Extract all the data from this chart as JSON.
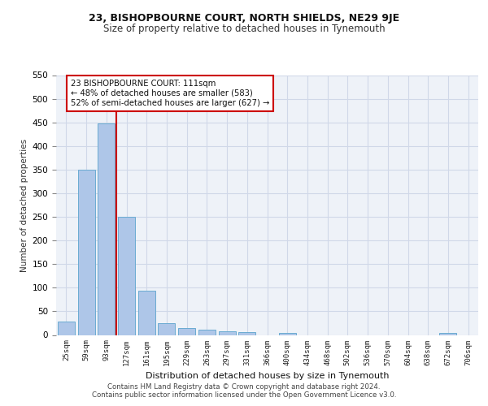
{
  "title1": "23, BISHOPBOURNE COURT, NORTH SHIELDS, NE29 9JE",
  "title2": "Size of property relative to detached houses in Tynemouth",
  "xlabel": "Distribution of detached houses by size in Tynemouth",
  "ylabel": "Number of detached properties",
  "bin_labels": [
    "25sqm",
    "59sqm",
    "93sqm",
    "127sqm",
    "161sqm",
    "195sqm",
    "229sqm",
    "263sqm",
    "297sqm",
    "331sqm",
    "366sqm",
    "400sqm",
    "434sqm",
    "468sqm",
    "502sqm",
    "536sqm",
    "570sqm",
    "604sqm",
    "638sqm",
    "672sqm",
    "706sqm"
  ],
  "bar_values": [
    28,
    350,
    447,
    250,
    93,
    25,
    14,
    11,
    7,
    6,
    0,
    5,
    0,
    0,
    0,
    0,
    0,
    0,
    0,
    5,
    0
  ],
  "bar_color": "#aec6e8",
  "bar_edge_color": "#6aabd2",
  "grid_color": "#d0d8e8",
  "background_color": "#eef2f8",
  "annotation_line1": "23 BISHOPBOURNE COURT: 111sqm",
  "annotation_line2": "← 48% of detached houses are smaller (583)",
  "annotation_line3": "52% of semi-detached houses are larger (627) →",
  "redline_color": "#cc0000",
  "annotation_box_color": "#ffffff",
  "annotation_box_edgecolor": "#cc0000",
  "footer_text": "Contains HM Land Registry data © Crown copyright and database right 2024.\nContains public sector information licensed under the Open Government Licence v3.0.",
  "ylim": [
    0,
    550
  ],
  "yticks": [
    0,
    50,
    100,
    150,
    200,
    250,
    300,
    350,
    400,
    450,
    500,
    550
  ]
}
